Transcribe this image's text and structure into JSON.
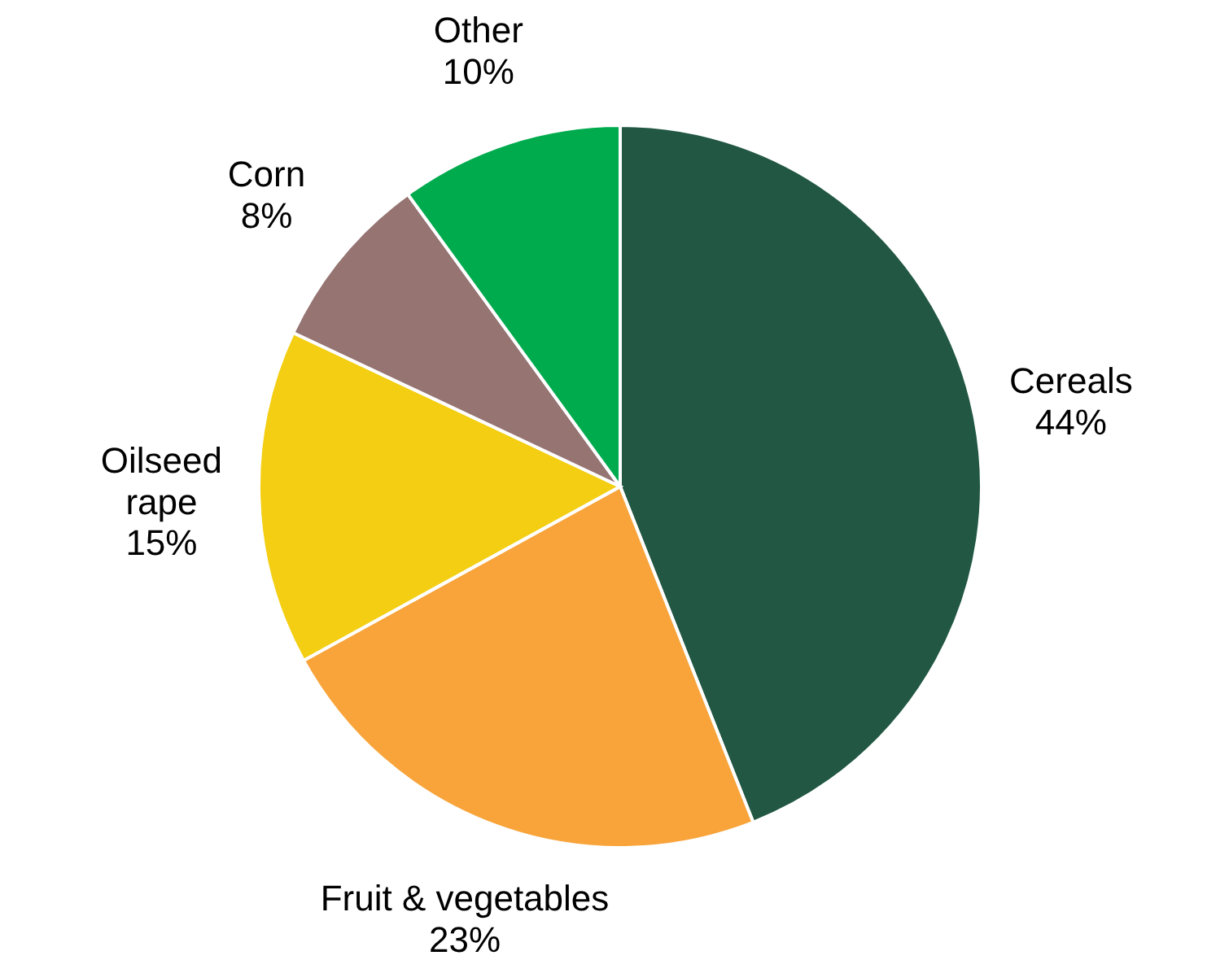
{
  "chart_data": {
    "type": "pie",
    "categories": [
      "Cereals",
      "Fruit & vegetables",
      "Oilseed rape",
      "Corn",
      "Other"
    ],
    "values": [
      44,
      23,
      15,
      8,
      10
    ],
    "colors": [
      "#215743",
      "#f8a43a",
      "#f3ce12",
      "#957472",
      "#00ab4e"
    ],
    "value_labels": [
      "44%",
      "23%",
      "15%",
      "8%",
      "10%"
    ]
  }
}
